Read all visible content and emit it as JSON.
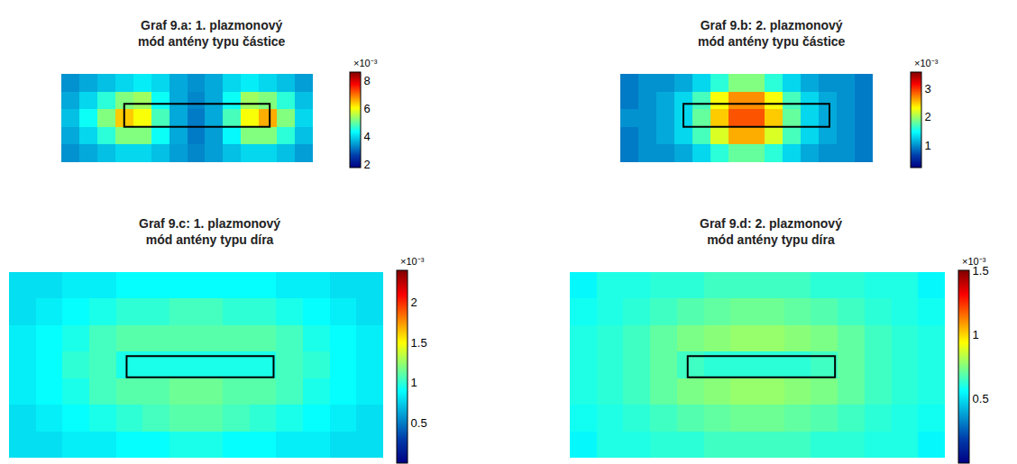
{
  "chart_data": [
    {
      "type": "heatmap",
      "title": [
        "Graf 9.a: 1. plazmonový",
        "mód antény typu částice"
      ],
      "tick_labels": false,
      "xlim": [
        -0.5,
        13.5
      ],
      "ylim": [
        4.5,
        -0.5
      ],
      "outline": {
        "x": [
          3.0,
          11.1
        ],
        "y": [
          1.2,
          2.5
        ]
      },
      "colorbar": {
        "range": [
          1.8,
          8.6
        ],
        "ticks": [
          2,
          4,
          6,
          8
        ],
        "label": "×10⁻³"
      },
      "cells": [
        [
          3.4,
          3.6,
          3.8,
          4.0,
          4.2,
          4.0,
          3.6,
          3.4,
          3.6,
          4.0,
          4.2,
          4.0,
          3.8,
          3.5
        ],
        [
          3.6,
          4.0,
          4.6,
          5.2,
          5.4,
          4.4,
          3.6,
          3.3,
          3.6,
          4.4,
          5.4,
          5.2,
          4.6,
          3.8
        ],
        [
          3.8,
          4.4,
          5.2,
          6.4,
          6.0,
          4.8,
          3.6,
          3.2,
          3.6,
          4.8,
          6.0,
          6.6,
          5.2,
          4.0
        ],
        [
          3.6,
          4.0,
          4.6,
          5.2,
          5.2,
          4.4,
          3.6,
          3.2,
          3.5,
          4.3,
          5.2,
          5.2,
          4.6,
          3.8
        ],
        [
          3.4,
          3.6,
          3.8,
          4.0,
          4.0,
          3.8,
          3.5,
          3.3,
          3.5,
          3.8,
          4.0,
          4.0,
          3.8,
          3.5
        ]
      ]
    },
    {
      "type": "heatmap",
      "title": [
        "Graf 9.b: 2. plazmonový",
        "mód antény typu částice"
      ],
      "tick_labels": false,
      "xlim": [
        -0.5,
        13.5
      ],
      "ylim": [
        4.5,
        -0.5
      ],
      "outline": {
        "x": [
          3.0,
          11.1
        ],
        "y": [
          1.2,
          2.5
        ]
      },
      "colorbar": {
        "range": [
          0.2,
          3.6
        ],
        "ticks": [
          1,
          2,
          3
        ],
        "label": "×10⁻³"
      },
      "cells": [
        [
          0.9,
          1.0,
          1.0,
          1.1,
          1.3,
          1.6,
          1.9,
          1.9,
          1.6,
          1.3,
          1.1,
          1.0,
          1.0,
          0.9
        ],
        [
          0.9,
          1.0,
          1.1,
          1.3,
          1.7,
          2.3,
          2.7,
          2.7,
          2.3,
          1.7,
          1.3,
          1.1,
          1.0,
          0.9
        ],
        [
          1.0,
          1.0,
          1.1,
          1.3,
          1.8,
          2.5,
          2.9,
          2.9,
          2.5,
          1.8,
          1.3,
          1.1,
          1.0,
          0.9
        ],
        [
          0.9,
          1.0,
          1.1,
          1.3,
          1.7,
          2.2,
          2.6,
          2.6,
          2.2,
          1.7,
          1.3,
          1.1,
          1.0,
          0.9
        ],
        [
          0.9,
          1.0,
          1.0,
          1.1,
          1.3,
          1.6,
          1.8,
          1.8,
          1.6,
          1.3,
          1.1,
          1.0,
          1.0,
          0.9
        ]
      ]
    },
    {
      "type": "heatmap",
      "title": [
        "Graf 9.c: 1. plazmonový",
        "mód antény typu díra"
      ],
      "tick_labels": false,
      "xlim": [
        -0.5,
        13.5
      ],
      "ylim": [
        6.5,
        -0.5
      ],
      "outline": {
        "x": [
          3.9,
          9.4
        ],
        "y": [
          2.67,
          3.47
        ]
      },
      "colorbar": {
        "range": [
          0,
          2.4
        ],
        "ticks": [
          0,
          0.5,
          1,
          1.5,
          2
        ],
        "label": "×10⁻³"
      },
      "cells": [
        [
          0.8,
          0.8,
          0.85,
          0.85,
          0.9,
          0.9,
          0.9,
          0.9,
          0.9,
          0.9,
          0.85,
          0.85,
          0.8,
          0.8
        ],
        [
          0.8,
          0.85,
          0.9,
          0.95,
          1.0,
          1.0,
          1.05,
          1.05,
          1.0,
          1.0,
          0.95,
          0.9,
          0.85,
          0.8
        ],
        [
          0.85,
          0.9,
          0.95,
          1.05,
          1.1,
          1.1,
          1.1,
          1.1,
          1.1,
          1.1,
          1.05,
          0.95,
          0.9,
          0.85
        ],
        [
          0.85,
          0.9,
          1.0,
          1.05,
          0.95,
          0.95,
          0.95,
          0.95,
          0.95,
          0.95,
          1.05,
          1.0,
          0.9,
          0.85
        ],
        [
          0.85,
          0.9,
          0.95,
          1.05,
          1.1,
          1.1,
          1.15,
          1.15,
          1.1,
          1.1,
          1.05,
          0.95,
          0.9,
          0.85
        ],
        [
          0.8,
          0.85,
          0.9,
          0.95,
          1.0,
          1.05,
          1.1,
          1.1,
          1.05,
          1.0,
          0.95,
          0.9,
          0.85,
          0.8
        ],
        [
          0.8,
          0.8,
          0.85,
          0.85,
          0.9,
          0.9,
          0.95,
          0.95,
          0.9,
          0.9,
          0.85,
          0.85,
          0.8,
          0.8
        ]
      ]
    },
    {
      "type": "heatmap",
      "title": [
        "Graf 9.d: 2. plazmonový",
        "mód antény typu díra"
      ],
      "tick_labels": false,
      "xlim": [
        -0.5,
        13.5
      ],
      "ylim": [
        6.5,
        -0.5
      ],
      "outline": {
        "x": [
          3.9,
          9.4
        ],
        "y": [
          2.67,
          3.47
        ]
      },
      "colorbar": {
        "range": [
          0,
          1.5
        ],
        "ticks": [
          0,
          0.5,
          1,
          1.5
        ],
        "label": "×10⁻³"
      },
      "cells": [
        [
          0.55,
          0.6,
          0.6,
          0.62,
          0.62,
          0.65,
          0.65,
          0.65,
          0.65,
          0.62,
          0.62,
          0.6,
          0.6,
          0.55
        ],
        [
          0.58,
          0.6,
          0.62,
          0.65,
          0.68,
          0.7,
          0.72,
          0.72,
          0.7,
          0.68,
          0.65,
          0.62,
          0.6,
          0.58
        ],
        [
          0.6,
          0.62,
          0.65,
          0.7,
          0.74,
          0.76,
          0.78,
          0.78,
          0.76,
          0.74,
          0.7,
          0.65,
          0.62,
          0.6
        ],
        [
          0.6,
          0.62,
          0.65,
          0.7,
          0.65,
          0.62,
          0.62,
          0.62,
          0.62,
          0.65,
          0.7,
          0.65,
          0.62,
          0.6
        ],
        [
          0.6,
          0.62,
          0.65,
          0.7,
          0.74,
          0.76,
          0.78,
          0.78,
          0.76,
          0.74,
          0.7,
          0.65,
          0.62,
          0.6
        ],
        [
          0.58,
          0.6,
          0.62,
          0.65,
          0.68,
          0.7,
          0.72,
          0.72,
          0.7,
          0.68,
          0.65,
          0.62,
          0.6,
          0.58
        ],
        [
          0.55,
          0.6,
          0.6,
          0.62,
          0.62,
          0.65,
          0.65,
          0.65,
          0.65,
          0.62,
          0.62,
          0.6,
          0.6,
          0.55
        ]
      ]
    }
  ]
}
